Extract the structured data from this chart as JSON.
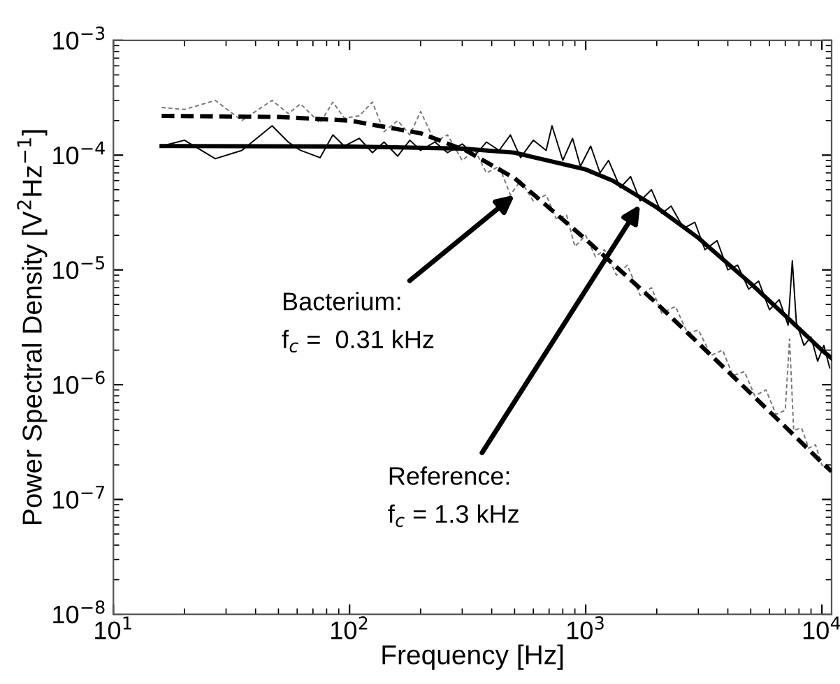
{
  "chart_data": {
    "type": "line",
    "xlabel": "Frequency [Hz]",
    "ylabel": "Power Spectral Density [V$^{2}$Hz$^{−1}$]",
    "log": "xy",
    "grid": false,
    "legend": false,
    "marker": "none",
    "xlim": [
      10,
      11000
    ],
    "ylim": [
      1e-08,
      0.001
    ],
    "xticks": [
      {
        "value": 10,
        "label": "10$^{1}$"
      },
      {
        "value": 100,
        "label": "10$^{2}$"
      },
      {
        "value": 1000,
        "label": "10$^{3}$"
      },
      {
        "value": 10000,
        "label": "10$^{4}$"
      }
    ],
    "yticks": [
      {
        "value": 1e-08,
        "label": "10$^{−8}$"
      },
      {
        "value": 1e-07,
        "label": "10$^{−7}$"
      },
      {
        "value": 1e-06,
        "label": "10$^{−6}$"
      },
      {
        "value": 1e-05,
        "label": "10$^{−5}$"
      },
      {
        "value": 0.0001,
        "label": "10$^{−4}$"
      },
      {
        "value": 0.001,
        "label": "10$^{−3}$"
      }
    ],
    "series": [
      {
        "color": "#777777",
        "line_style": "dashed",
        "x": [
          16,
          20,
          27,
          35,
          47,
          55,
          62,
          75,
          85,
          95,
          110,
          125,
          140,
          160,
          180,
          200,
          230,
          260,
          300,
          340,
          380,
          430,
          480,
          530,
          600,
          680,
          750,
          830,
          900,
          1000,
          1100,
          1200,
          1350,
          1500,
          1700,
          1900,
          2100,
          2400,
          2700,
          3000,
          3400,
          3800,
          4200,
          4700,
          5200,
          5800,
          6400,
          7000,
          7300,
          7600,
          8200,
          8800,
          9400,
          10000,
          10800
        ],
        "values": [
          0.00026,
          0.00025,
          0.0003,
          0.0002,
          0.0003,
          0.00023,
          0.00028,
          0.00019,
          0.00029,
          0.00021,
          0.00022,
          0.00029,
          0.00016,
          0.0002,
          0.00015,
          0.00024,
          0.00013,
          0.00015,
          9e-05,
          0.00011,
          7e-05,
          8e-05,
          4.5e-05,
          6e-05,
          4e-05,
          4.5e-05,
          2.8e-05,
          3e-05,
          1.6e-05,
          2e-05,
          1.3e-05,
          1.5e-05,
          9e-06,
          1.1e-05,
          6e-06,
          7e-06,
          4.2e-06,
          4.8e-06,
          2.8e-06,
          3e-06,
          1.8e-06,
          2e-06,
          1.2e-06,
          1.3e-06,
          8e-07,
          9e-07,
          5.5e-07,
          6e-07,
          2.5e-06,
          4e-07,
          4.2e-07,
          2.8e-07,
          3e-07,
          2e-07,
          1.9e-07
        ]
      },
      {
        "color": "#000000",
        "line_style": "solid",
        "x": [
          16,
          20,
          27,
          35,
          47,
          55,
          62,
          75,
          85,
          95,
          110,
          125,
          140,
          160,
          180,
          200,
          230,
          260,
          300,
          340,
          380,
          430,
          480,
          530,
          600,
          680,
          720,
          800,
          880,
          950,
          1050,
          1150,
          1250,
          1400,
          1550,
          1700,
          1900,
          2100,
          2300,
          2600,
          2900,
          3200,
          3600,
          4000,
          4400,
          4900,
          5400,
          6000,
          6600,
          7200,
          7500,
          7800,
          8400,
          9000,
          9600,
          10200,
          10800
        ],
        "values": [
          0.00012,
          0.000135,
          9.3e-05,
          0.00011,
          0.00018,
          0.00013,
          0.00011,
          9.5e-05,
          0.00015,
          0.00012,
          0.00014,
          0.000105,
          0.00013,
          9.8e-05,
          0.000135,
          0.00011,
          0.00013,
          0.000105,
          0.000125,
          0.0001,
          0.00013,
          0.00011,
          0.00015,
          9.5e-05,
          0.000135,
          0.00011,
          0.00018,
          9e-05,
          0.00014,
          8e-05,
          0.00012,
          7e-05,
          9e-05,
          5.2e-05,
          6.5e-05,
          4e-05,
          5e-05,
          3.1e-05,
          3.6e-05,
          2.3e-05,
          2.6e-05,
          1.5e-05,
          1.8e-05,
          1e-05,
          1.1e-05,
          6.8e-06,
          8e-06,
          4.5e-06,
          5.5e-06,
          3.3e-06,
          1.2e-05,
          3.5e-06,
          2.2e-06,
          2.6e-06,
          1.6e-06,
          2.2e-06,
          1.4e-06
        ]
      },
      {
        "color": "#000000",
        "line_style": "dashed",
        "x": [
          16,
          50,
          100,
          200,
          310,
          500,
          1000,
          2000,
          3000,
          5000,
          7000,
          10000,
          11000
        ],
        "values": [
          0.00022,
          0.000215,
          0.0002,
          0.000155,
          0.00011,
          6.3e-05,
          1.85e-05,
          5.1e-06,
          2.3e-06,
          8.4e-07,
          4.3e-07,
          2.1e-07,
          1.75e-07
        ]
      },
      {
        "color": "#000000",
        "line_style": "solid",
        "x": [
          16,
          100,
          300,
          500,
          1000,
          1300,
          2000,
          3000,
          5000,
          7000,
          10000,
          11000
        ],
        "values": [
          0.00012,
          0.000119,
          0.000114,
          0.000105,
          7.5e-05,
          6e-05,
          3.5e-05,
          1.9e-05,
          7.6e-06,
          4e-06,
          2e-06,
          1.7e-06
        ]
      }
    ],
    "annotations": [
      {
        "text": "Bacterium:\nf$_{c}$ =  0.31 kHz",
        "x": 500,
        "y": 4.5e-05
      },
      {
        "text": "Reference:\nf$_{c}$ = 1.3 kHz",
        "x": 1700,
        "y": 3.7e-05
      }
    ]
  }
}
